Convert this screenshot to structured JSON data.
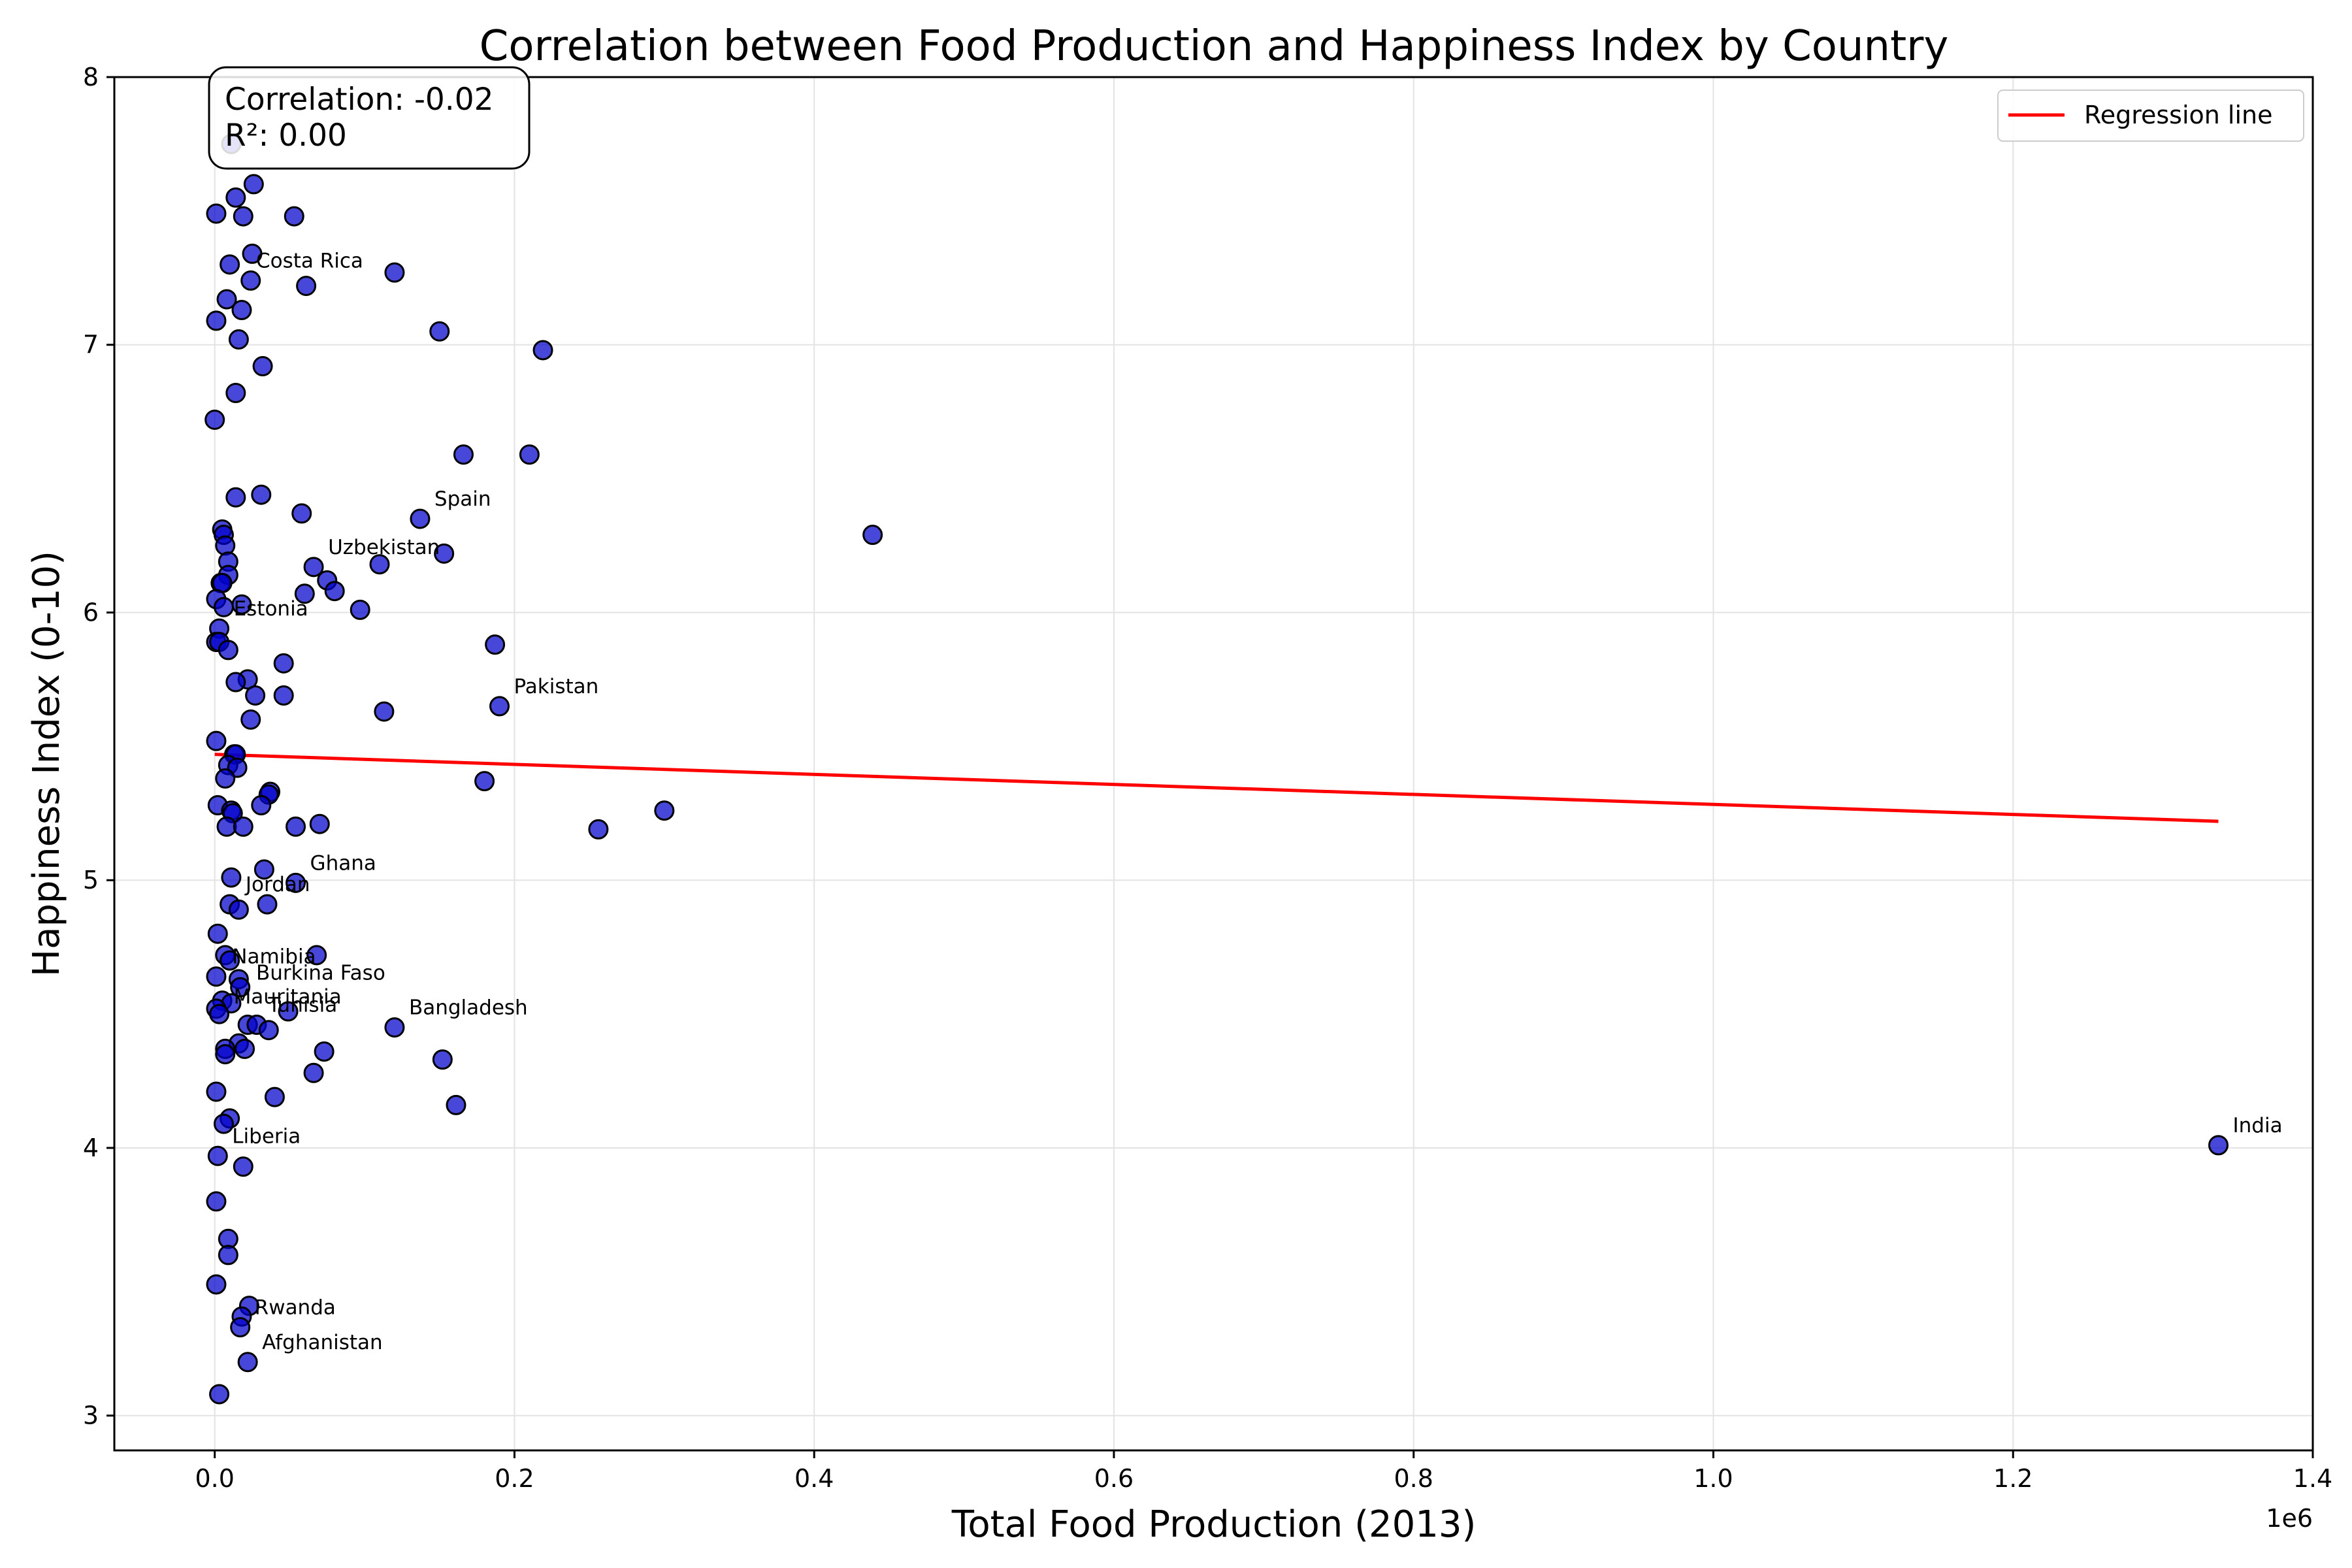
{
  "chart_data": {
    "type": "scatter",
    "title": "Correlation between Food Production and Happiness Index by Country",
    "xlabel": "Total Food Production (2013)",
    "ylabel": "Happiness Index (0-10)",
    "x_offset_label": "1e6",
    "xlim": [
      -0.067,
      1.4
    ],
    "ylim": [
      2.87,
      8.0
    ],
    "xticks": [
      {
        "v": 0.0,
        "label": "0.0"
      },
      {
        "v": 0.2,
        "label": "0.2"
      },
      {
        "v": 0.4,
        "label": "0.4"
      },
      {
        "v": 0.6,
        "label": "0.6"
      },
      {
        "v": 0.8,
        "label": "0.8"
      },
      {
        "v": 1.0,
        "label": "1.0"
      },
      {
        "v": 1.2,
        "label": "1.2"
      },
      {
        "v": 1.4,
        "label": "1.4"
      }
    ],
    "yticks": [
      {
        "v": 3,
        "label": "3"
      },
      {
        "v": 4,
        "label": "4"
      },
      {
        "v": 5,
        "label": "5"
      },
      {
        "v": 6,
        "label": "6"
      },
      {
        "v": 7,
        "label": "7"
      },
      {
        "v": 8,
        "label": "8"
      }
    ],
    "grid": true,
    "marker_color": "#0000cc",
    "regression_color": "#ff0000",
    "legend": {
      "placement": "top-right",
      "entries": [
        "Regression line"
      ]
    },
    "stats": {
      "correlation": "Correlation: -0.02",
      "r2": "R²: 0.00"
    },
    "regression_line": [
      [
        0.0,
        5.47
      ],
      [
        1.337,
        5.22
      ]
    ],
    "points": [
      [
        0.001,
        7.49
      ],
      [
        0.014,
        7.55
      ],
      [
        0.026,
        7.6
      ],
      [
        0.019,
        7.48
      ],
      [
        0.053,
        7.48
      ],
      [
        0.01,
        7.3
      ],
      [
        0.025,
        7.34
      ],
      [
        0.024,
        7.24
      ],
      [
        0.061,
        7.22
      ],
      [
        0.12,
        7.27
      ],
      [
        0.008,
        7.17
      ],
      [
        0.018,
        7.13
      ],
      [
        0.001,
        7.09
      ],
      [
        0.15,
        7.05
      ],
      [
        0.016,
        7.02
      ],
      [
        0.219,
        6.98
      ],
      [
        0.032,
        6.92
      ],
      [
        0.014,
        6.82
      ],
      [
        0.0,
        6.72
      ],
      [
        0.166,
        6.59
      ],
      [
        0.21,
        6.59
      ],
      [
        0.014,
        6.43
      ],
      [
        0.031,
        6.44
      ],
      [
        0.058,
        6.37
      ],
      [
        0.137,
        6.35
      ],
      [
        0.005,
        6.31
      ],
      [
        0.006,
        6.29
      ],
      [
        0.007,
        6.25
      ],
      [
        0.439,
        6.29
      ],
      [
        0.153,
        6.22
      ],
      [
        0.009,
        6.19
      ],
      [
        0.066,
        6.17
      ],
      [
        0.11,
        6.18
      ],
      [
        0.009,
        6.14
      ],
      [
        0.075,
        6.12
      ],
      [
        0.004,
        6.11
      ],
      [
        0.005,
        6.11
      ],
      [
        0.08,
        6.08
      ],
      [
        0.06,
        6.07
      ],
      [
        0.001,
        6.05
      ],
      [
        0.006,
        6.02
      ],
      [
        0.018,
        6.03
      ],
      [
        0.097,
        6.01
      ],
      [
        0.003,
        5.94
      ],
      [
        0.001,
        5.89
      ],
      [
        0.003,
        5.89
      ],
      [
        0.009,
        5.86
      ],
      [
        0.187,
        5.88
      ],
      [
        0.046,
        5.81
      ],
      [
        0.022,
        5.75
      ],
      [
        0.014,
        5.74
      ],
      [
        0.027,
        5.69
      ],
      [
        0.046,
        5.69
      ],
      [
        0.19,
        5.65
      ],
      [
        0.113,
        5.63
      ],
      [
        0.024,
        5.6
      ],
      [
        0.001,
        5.52
      ],
      [
        0.013,
        5.47
      ],
      [
        0.014,
        5.47
      ],
      [
        0.009,
        5.43
      ],
      [
        0.015,
        5.42
      ],
      [
        0.007,
        5.38
      ],
      [
        0.18,
        5.37
      ],
      [
        0.037,
        5.33
      ],
      [
        0.036,
        5.32
      ],
      [
        0.002,
        5.28
      ],
      [
        0.031,
        5.28
      ],
      [
        0.011,
        5.26
      ],
      [
        0.012,
        5.25
      ],
      [
        0.3,
        5.26
      ],
      [
        0.008,
        5.2
      ],
      [
        0.019,
        5.2
      ],
      [
        0.054,
        5.2
      ],
      [
        0.07,
        5.21
      ],
      [
        0.256,
        5.19
      ],
      [
        0.033,
        5.04
      ],
      [
        0.011,
        5.01
      ],
      [
        0.054,
        4.99
      ],
      [
        0.01,
        4.91
      ],
      [
        0.035,
        4.91
      ],
      [
        0.016,
        4.89
      ],
      [
        0.002,
        4.8
      ],
      [
        0.007,
        4.72
      ],
      [
        0.068,
        4.72
      ],
      [
        0.01,
        4.7
      ],
      [
        0.001,
        4.64
      ],
      [
        0.016,
        4.63
      ],
      [
        0.017,
        4.6
      ],
      [
        0.005,
        4.55
      ],
      [
        0.011,
        4.54
      ],
      [
        0.001,
        4.52
      ],
      [
        0.049,
        4.51
      ],
      [
        0.003,
        4.5
      ],
      [
        0.022,
        4.46
      ],
      [
        0.028,
        4.46
      ],
      [
        0.12,
        4.45
      ],
      [
        0.036,
        4.44
      ],
      [
        0.016,
        4.39
      ],
      [
        0.007,
        4.37
      ],
      [
        0.02,
        4.37
      ],
      [
        0.073,
        4.36
      ],
      [
        0.007,
        4.35
      ],
      [
        0.152,
        4.33
      ],
      [
        0.066,
        4.28
      ],
      [
        0.001,
        4.21
      ],
      [
        0.04,
        4.19
      ],
      [
        0.161,
        4.16
      ],
      [
        0.01,
        4.11
      ],
      [
        0.006,
        4.09
      ],
      [
        1.337,
        4.01
      ],
      [
        0.002,
        3.97
      ],
      [
        0.019,
        3.93
      ],
      [
        0.001,
        3.8
      ],
      [
        0.009,
        3.66
      ],
      [
        0.009,
        3.6
      ],
      [
        0.001,
        3.49
      ],
      [
        0.023,
        3.41
      ],
      [
        0.018,
        3.37
      ],
      [
        0.017,
        3.33
      ],
      [
        0.022,
        3.2
      ],
      [
        0.003,
        3.08
      ],
      [
        0.011,
        7.75
      ]
    ],
    "annotations": [
      {
        "label": "Costa Rica",
        "x": 0.018,
        "y": 7.24
      },
      {
        "label": "Spain",
        "x": 0.137,
        "y": 6.35
      },
      {
        "label": "Uzbekistan",
        "x": 0.066,
        "y": 6.17
      },
      {
        "label": "Estonia",
        "x": 0.003,
        "y": 5.94
      },
      {
        "label": "Pakistan",
        "x": 0.19,
        "y": 5.65
      },
      {
        "label": "Ghana",
        "x": 0.054,
        "y": 4.99
      },
      {
        "label": "Jordan",
        "x": 0.011,
        "y": 4.91
      },
      {
        "label": "Namibia",
        "x": 0.002,
        "y": 4.64
      },
      {
        "label": "Burkina Faso",
        "x": 0.018,
        "y": 4.58
      },
      {
        "label": "Mauritania",
        "x": 0.003,
        "y": 4.49
      },
      {
        "label": "Tunisia",
        "x": 0.026,
        "y": 4.46
      },
      {
        "label": "Bangladesh",
        "x": 0.12,
        "y": 4.45
      },
      {
        "label": "Liberia",
        "x": 0.002,
        "y": 3.97
      },
      {
        "label": "India",
        "x": 1.337,
        "y": 4.01
      },
      {
        "label": "Rwanda",
        "x": 0.017,
        "y": 3.33
      },
      {
        "label": "Afghanistan",
        "x": 0.022,
        "y": 3.2
      }
    ]
  }
}
